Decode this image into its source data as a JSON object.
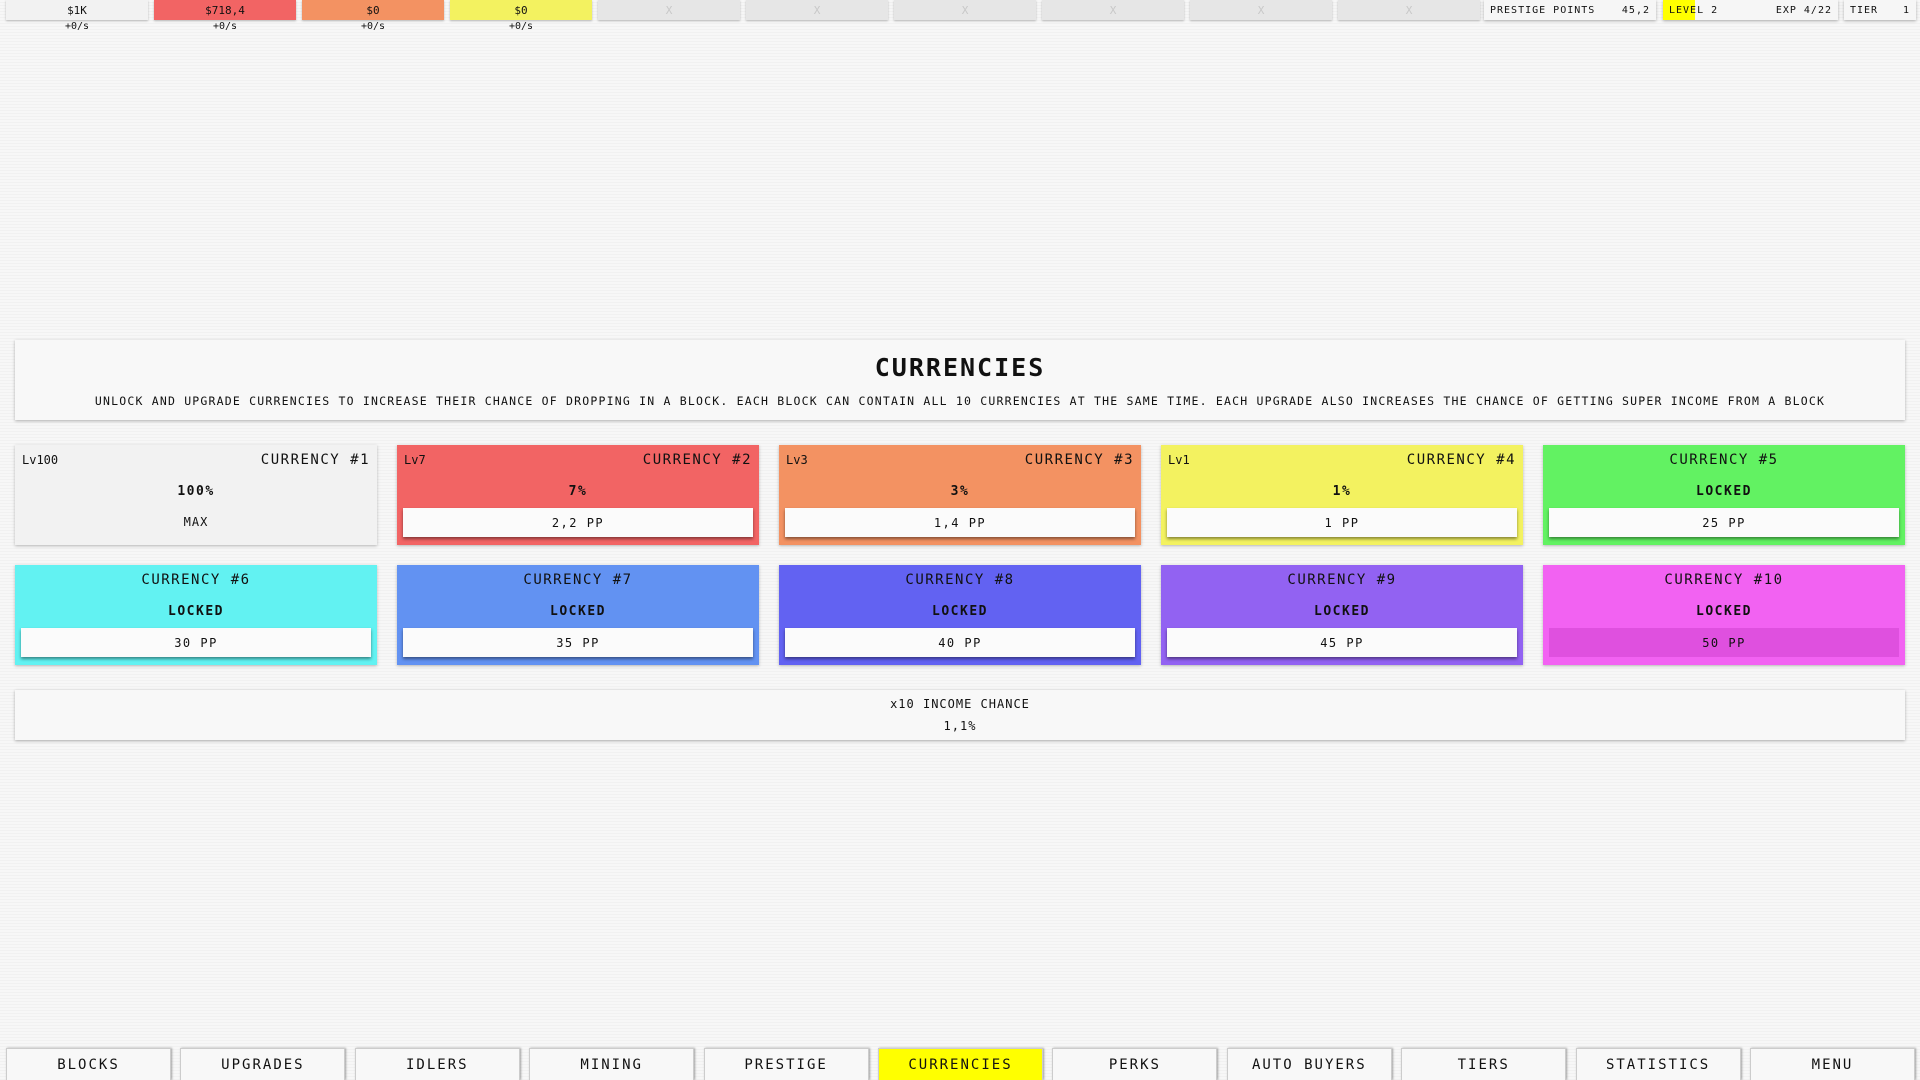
{
  "currencies_bar": [
    {
      "amount": "$1K",
      "rate": "+0/s",
      "color": "#f2f2f2"
    },
    {
      "amount": "$718,4",
      "rate": "+0/s",
      "color": "#f26464"
    },
    {
      "amount": "$0",
      "rate": "+0/s",
      "color": "#f39262"
    },
    {
      "amount": "$0",
      "rate": "+0/s",
      "color": "#f3f260"
    },
    {
      "amount": "X"
    },
    {
      "amount": "X"
    },
    {
      "amount": "X"
    },
    {
      "amount": "X"
    },
    {
      "amount": "X"
    },
    {
      "amount": "X"
    }
  ],
  "stats": {
    "prestige_label": "PRESTIGE POINTS",
    "prestige_value": "45,2",
    "level_label": "LEVEL 2",
    "exp_label": "EXP 4/22",
    "exp_current": 4,
    "exp_max": 22,
    "tier_label": "TIER",
    "tier_value": "1"
  },
  "header": {
    "title": "CURRENCIES",
    "description": "UNLOCK AND UPGRADE CURRENCIES TO INCREASE THEIR CHANCE OF DROPPING IN A BLOCK. EACH BLOCK CAN CONTAIN ALL 10 CURRENCIES AT THE SAME TIME. EACH UPGRADE ALSO INCREASES THE CHANCE OF GETTING SUPER INCOME FROM A BLOCK"
  },
  "cards": [
    {
      "level": "Lv100",
      "name": "CURRENCY #1",
      "value": "100%",
      "action": "MAX",
      "color": "#f2f2f2"
    },
    {
      "level": "Lv7",
      "name": "CURRENCY #2",
      "value": "7%",
      "action": "2,2 PP",
      "color": "#f26464"
    },
    {
      "level": "Lv3",
      "name": "CURRENCY #3",
      "value": "3%",
      "action": "1,4 PP",
      "color": "#f39262"
    },
    {
      "level": "Lv1",
      "name": "CURRENCY #4",
      "value": "1%",
      "action": "1 PP",
      "color": "#f3f260"
    },
    {
      "name": "CURRENCY #5",
      "value": "LOCKED",
      "action": "25 PP",
      "color": "#62f262"
    },
    {
      "name": "CURRENCY #6",
      "value": "LOCKED",
      "action": "30 PP",
      "color": "#62f2f2"
    },
    {
      "name": "CURRENCY #7",
      "value": "LOCKED",
      "action": "35 PP",
      "color": "#6292f2"
    },
    {
      "name": "CURRENCY #8",
      "value": "LOCKED",
      "action": "40 PP",
      "color": "#6262f2"
    },
    {
      "name": "CURRENCY #9",
      "value": "LOCKED",
      "action": "45 PP",
      "color": "#9262f2"
    },
    {
      "name": "CURRENCY #10",
      "value": "LOCKED",
      "action": "50 PP",
      "color": "#f262f2",
      "disabled": true
    }
  ],
  "income": {
    "label": "x10 INCOME CHANCE",
    "value": "1,1%"
  },
  "nav": [
    "BLOCKS",
    "UPGRADES",
    "IDLERS",
    "MINING",
    "PRESTIGE",
    "CURRENCIES",
    "PERKS",
    "AUTO BUYERS",
    "TIERS",
    "STATISTICS",
    "MENU"
  ],
  "nav_active": "CURRENCIES"
}
